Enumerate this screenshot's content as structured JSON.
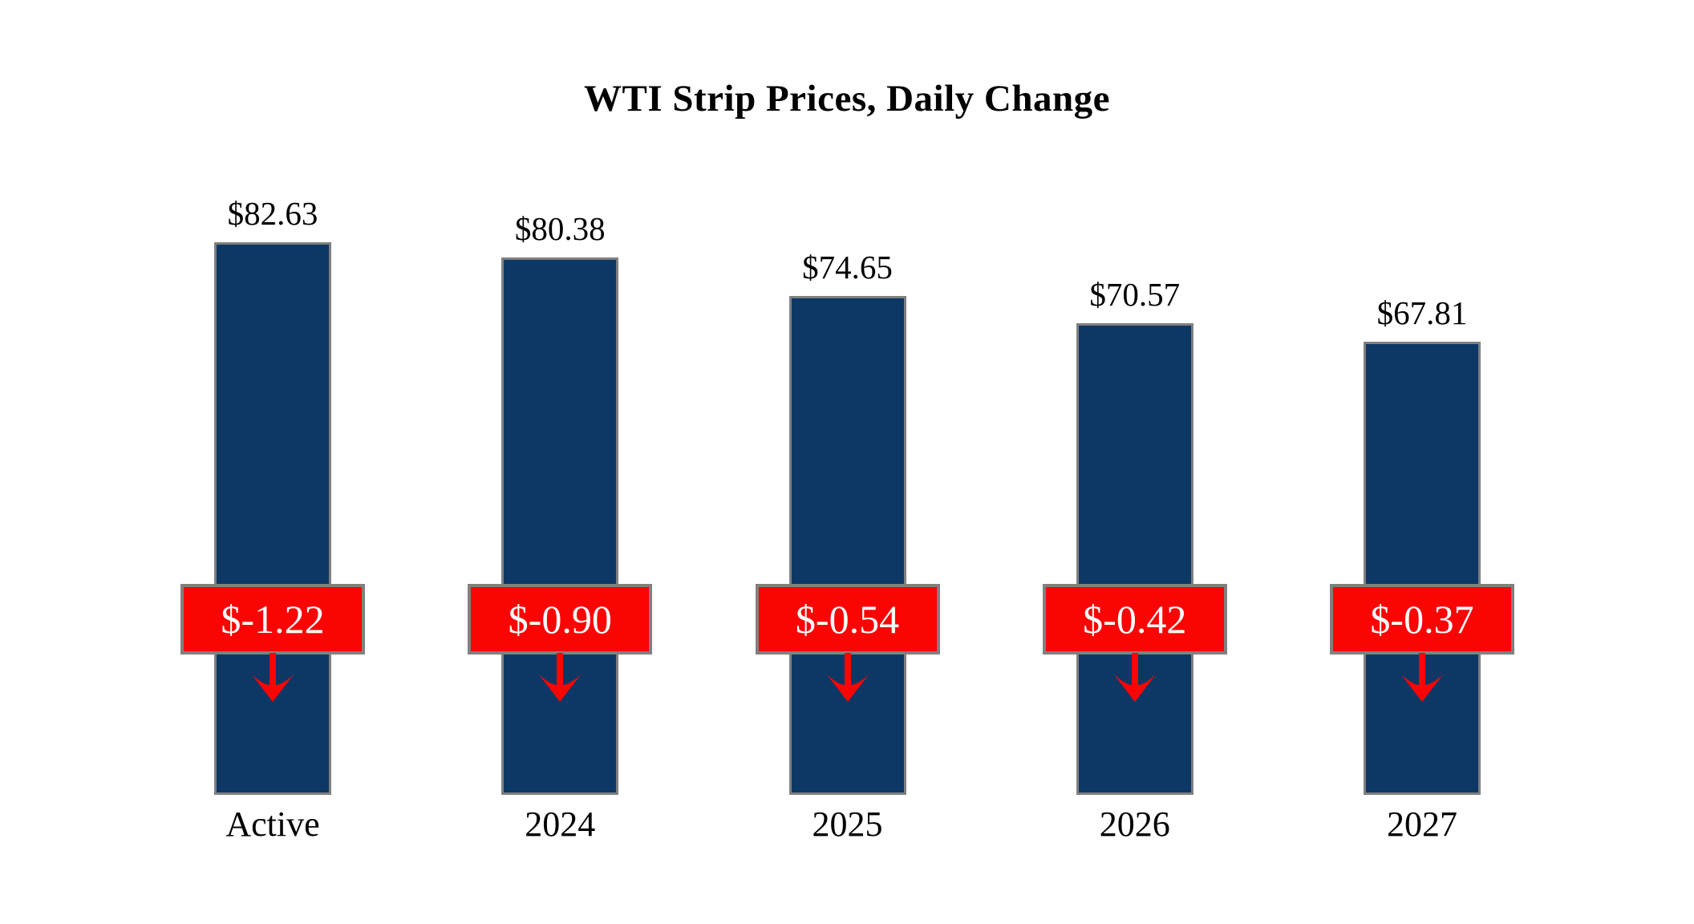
{
  "chart_data": {
    "type": "bar",
    "title": "WTI Strip Prices, Daily Change",
    "categories": [
      "Active",
      "2024",
      "2025",
      "2026",
      "2027"
    ],
    "series": [
      {
        "name": "Strip Price",
        "values": [
          82.63,
          80.38,
          74.65,
          70.57,
          67.81
        ]
      },
      {
        "name": "Daily Change",
        "values": [
          -1.22,
          -0.9,
          -0.54,
          -0.42,
          -0.37
        ]
      }
    ],
    "value_labels": [
      "$82.63",
      "$80.38",
      "$74.65",
      "$70.57",
      "$67.81"
    ],
    "change_labels": [
      "$-1.22",
      "$-0.90",
      "$-0.54",
      "$-0.42",
      "$-0.37"
    ],
    "xlabel": "",
    "ylabel": "",
    "ylim": [
      0,
      95
    ],
    "grid": false,
    "legend": "none",
    "colors": {
      "bar_fill": "#0d3866",
      "bar_border": "#808080",
      "change_fill": "#fb0404",
      "change_border": "#808080",
      "change_text": "#ffffff",
      "label_text": "#000000",
      "arrow": "#fb0404",
      "background": "#ffffff"
    }
  }
}
